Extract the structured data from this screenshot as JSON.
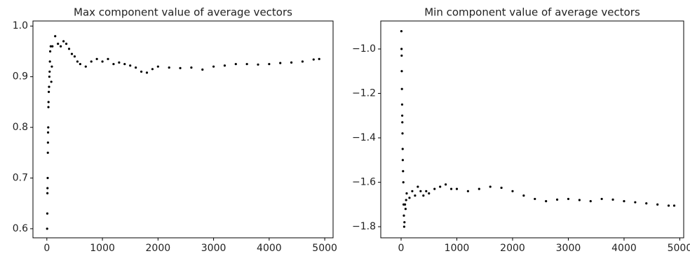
{
  "chart_data": [
    {
      "type": "scatter",
      "title": "Max component value of average vectors",
      "color": "#000000",
      "xlim": [
        -250,
        5150
      ],
      "ylim": [
        0.582,
        1.01
      ],
      "xticks": [
        0,
        1000,
        2000,
        3000,
        4000,
        5000
      ],
      "yticks": [
        0.6,
        0.7,
        0.8,
        0.9,
        {
          "value": 1.0,
          "label": "1.0"
        }
      ],
      "x": [
        5,
        8,
        10,
        12,
        15,
        18,
        20,
        22,
        25,
        28,
        30,
        35,
        40,
        45,
        50,
        55,
        60,
        70,
        80,
        90,
        100,
        150,
        200,
        250,
        300,
        350,
        400,
        450,
        500,
        550,
        600,
        700,
        800,
        900,
        1000,
        1100,
        1200,
        1300,
        1400,
        1500,
        1600,
        1700,
        1800,
        1900,
        2000,
        2200,
        2400,
        2600,
        2800,
        3000,
        3200,
        3400,
        3600,
        3800,
        4000,
        4200,
        4400,
        4600,
        4800,
        4900
      ],
      "values": [
        0.6,
        0.63,
        0.67,
        0.68,
        0.7,
        0.75,
        0.77,
        0.79,
        0.8,
        0.84,
        0.85,
        0.87,
        0.88,
        0.9,
        0.91,
        0.93,
        0.95,
        0.96,
        0.89,
        0.92,
        0.96,
        0.98,
        0.965,
        0.96,
        0.97,
        0.965,
        0.955,
        0.945,
        0.94,
        0.93,
        0.925,
        0.92,
        0.93,
        0.935,
        0.93,
        0.935,
        0.925,
        0.928,
        0.925,
        0.922,
        0.918,
        0.91,
        0.908,
        0.915,
        0.92,
        0.918,
        0.917,
        0.918,
        0.914,
        0.92,
        0.922,
        0.925,
        0.925,
        0.924,
        0.925,
        0.927,
        0.928,
        0.93,
        0.934,
        0.935
      ]
    },
    {
      "type": "scatter",
      "title": "Min component value of average vectors",
      "color": "#000000",
      "xlim": [
        -365,
        5070
      ],
      "ylim": [
        -1.85,
        -0.874
      ],
      "xticks": [
        0,
        1000,
        2000,
        3000,
        4000,
        5000
      ],
      "yticks": [
        {
          "value": -1.8,
          "label": "−1.8"
        },
        {
          "value": -1.6,
          "label": "−1.6"
        },
        {
          "value": -1.4,
          "label": "−1.4"
        },
        {
          "value": -1.2,
          "label": "−1.2"
        },
        {
          "value": -1.0,
          "label": "−1.0"
        }
      ],
      "x": [
        5,
        8,
        10,
        12,
        15,
        18,
        20,
        22,
        25,
        28,
        30,
        35,
        40,
        45,
        50,
        55,
        60,
        70,
        80,
        90,
        100,
        150,
        200,
        250,
        300,
        350,
        400,
        450,
        500,
        600,
        700,
        800,
        900,
        1000,
        1200,
        1400,
        1600,
        1800,
        2000,
        2200,
        2400,
        2600,
        2800,
        3000,
        3200,
        3400,
        3600,
        3800,
        4000,
        4200,
        4400,
        4600,
        4800,
        4900
      ],
      "values": [
        -0.92,
        -1.0,
        -1.03,
        -1.1,
        -1.18,
        -1.25,
        -1.3,
        -1.33,
        -1.38,
        -1.45,
        -1.5,
        -1.55,
        -1.6,
        -1.7,
        -1.75,
        -1.8,
        -1.78,
        -1.7,
        -1.72,
        -1.68,
        -1.65,
        -1.67,
        -1.64,
        -1.66,
        -1.62,
        -1.64,
        -1.66,
        -1.64,
        -1.65,
        -1.63,
        -1.62,
        -1.61,
        -1.63,
        -1.63,
        -1.64,
        -1.63,
        -1.62,
        -1.625,
        -1.64,
        -1.66,
        -1.675,
        -1.685,
        -1.678,
        -1.675,
        -1.68,
        -1.685,
        -1.675,
        -1.678,
        -1.685,
        -1.69,
        -1.695,
        -1.7,
        -1.705,
        -1.705
      ]
    }
  ]
}
